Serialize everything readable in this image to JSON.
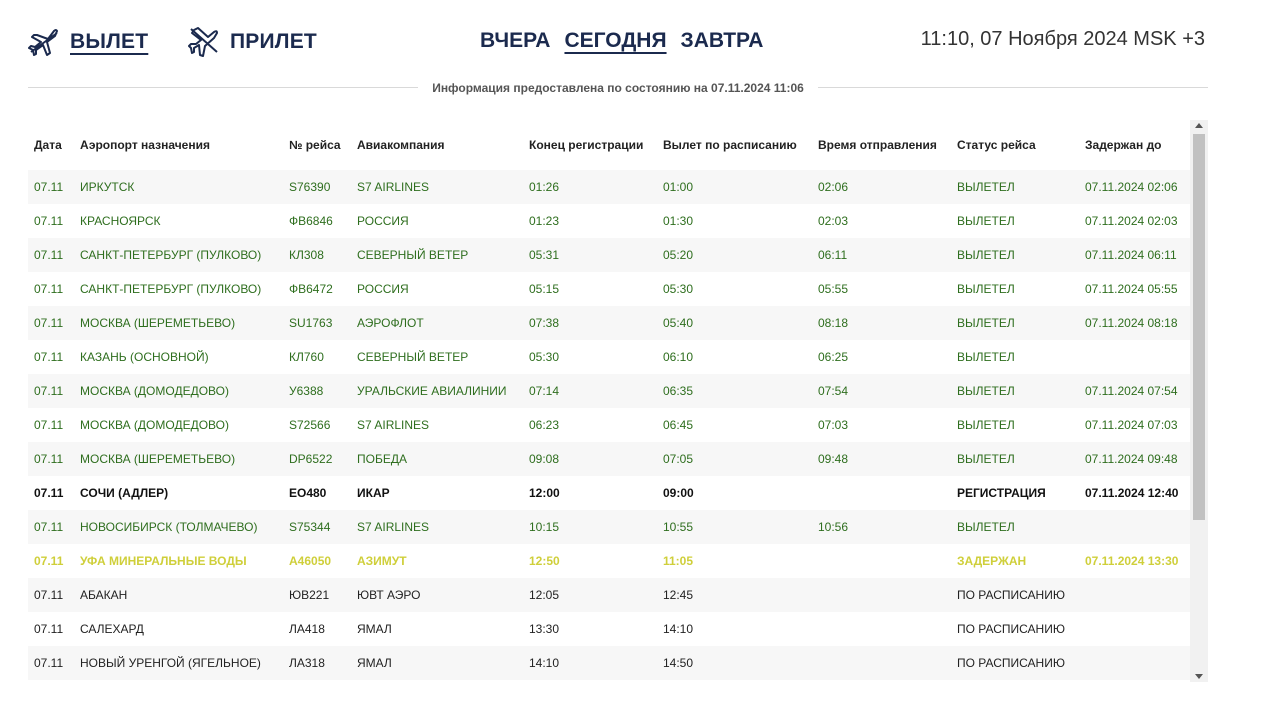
{
  "nav": {
    "departure_label": "ВЫЛЕТ",
    "arrival_label": "ПРИЛЕТ",
    "day_tabs": [
      "ВЧЕРА",
      "СЕГОДНЯ",
      "ЗАВТРА"
    ],
    "active_day": "СЕГОДНЯ",
    "active_direction": "ВЫЛЕТ",
    "clock": "11:10, 07 Ноября 2024 MSK +3",
    "accent_color": "#1b2a4e"
  },
  "info": {
    "text": "Информация предоставлена по состоянию на 07.11.2024 11:06"
  },
  "table": {
    "headers": [
      "Дата",
      "Аэропорт назначения",
      "№ рейса",
      "Авиакомпания",
      "Конец регистрации",
      "Вылет по расписанию",
      "Время отправления",
      "Статус рейса",
      "Задержан до"
    ],
    "status_colors": {
      "departed": "#2e6e1e",
      "checkin": "#111111",
      "delayed": "#cfcf3a",
      "scheduled": "#222222"
    },
    "rows": [
      {
        "status_class": "departed",
        "cells": [
          "07.11",
          "ИРКУТСК",
          "S76390",
          "S7 AIRLINES",
          "01:26",
          "01:00",
          "02:06",
          "ВЫЛЕТЕЛ",
          "07.11.2024 02:06"
        ]
      },
      {
        "status_class": "departed",
        "cells": [
          "07.11",
          "КРАСНОЯРСК",
          "ФВ6846",
          "РОССИЯ",
          "01:23",
          "01:30",
          "02:03",
          "ВЫЛЕТЕЛ",
          "07.11.2024 02:03"
        ]
      },
      {
        "status_class": "departed",
        "cells": [
          "07.11",
          "САНКТ-ПЕТЕРБУРГ (ПУЛКОВО)",
          "КЛ308",
          "СЕВЕРНЫЙ ВЕТЕР",
          "05:31",
          "05:20",
          "06:11",
          "ВЫЛЕТЕЛ",
          "07.11.2024 06:11"
        ]
      },
      {
        "status_class": "departed",
        "cells": [
          "07.11",
          "САНКТ-ПЕТЕРБУРГ (ПУЛКОВО)",
          "ФВ6472",
          "РОССИЯ",
          "05:15",
          "05:30",
          "05:55",
          "ВЫЛЕТЕЛ",
          "07.11.2024 05:55"
        ]
      },
      {
        "status_class": "departed",
        "cells": [
          "07.11",
          "МОСКВА (ШЕРЕМЕТЬЕВО)",
          "SU1763",
          "АЭРОФЛОТ",
          "07:38",
          "05:40",
          "08:18",
          "ВЫЛЕТЕЛ",
          "07.11.2024 08:18"
        ]
      },
      {
        "status_class": "departed",
        "cells": [
          "07.11",
          "КАЗАНЬ (ОСНОВНОЙ)",
          "КЛ760",
          "СЕВЕРНЫЙ ВЕТЕР",
          "05:30",
          "06:10",
          "06:25",
          "ВЫЛЕТЕЛ",
          ""
        ]
      },
      {
        "status_class": "departed",
        "cells": [
          "07.11",
          "МОСКВА (ДОМОДЕДОВО)",
          "У6388",
          "УРАЛЬСКИЕ АВИАЛИНИИ",
          "07:14",
          "06:35",
          "07:54",
          "ВЫЛЕТЕЛ",
          "07.11.2024 07:54"
        ]
      },
      {
        "status_class": "departed",
        "cells": [
          "07.11",
          "МОСКВА (ДОМОДЕДОВО)",
          "S72566",
          "S7 AIRLINES",
          "06:23",
          "06:45",
          "07:03",
          "ВЫЛЕТЕЛ",
          "07.11.2024 07:03"
        ]
      },
      {
        "status_class": "departed",
        "cells": [
          "07.11",
          "МОСКВА (ШЕРЕМЕТЬЕВО)",
          "DP6522",
          "ПОБЕДА",
          "09:08",
          "07:05",
          "09:48",
          "ВЫЛЕТЕЛ",
          "07.11.2024 09:48"
        ]
      },
      {
        "status_class": "checkin",
        "cells": [
          "07.11",
          "СОЧИ (АДЛЕР)",
          "ЕО480",
          "ИКАР",
          "12:00",
          "09:00",
          "",
          "РЕГИСТРАЦИЯ",
          "07.11.2024 12:40"
        ]
      },
      {
        "status_class": "departed",
        "cells": [
          "07.11",
          "НОВОСИБИРСК (ТОЛМАЧЕВО)",
          "S75344",
          "S7 AIRLINES",
          "10:15",
          "10:55",
          "10:56",
          "ВЫЛЕТЕЛ",
          ""
        ]
      },
      {
        "status_class": "delayed",
        "cells": [
          "07.11",
          "УФА МИНЕРАЛЬНЫЕ ВОДЫ",
          "А46050",
          "АЗИМУТ",
          "12:50",
          "11:05",
          "",
          "ЗАДЕРЖАН",
          "07.11.2024 13:30"
        ]
      },
      {
        "status_class": "scheduled",
        "cells": [
          "07.11",
          "АБАКАН",
          "ЮВ221",
          "ЮВТ АЭРО",
          "12:05",
          "12:45",
          "",
          "ПО РАСПИСАНИЮ",
          ""
        ]
      },
      {
        "status_class": "scheduled",
        "cells": [
          "07.11",
          "САЛЕХАРД",
          "ЛА418",
          "ЯМАЛ",
          "13:30",
          "14:10",
          "",
          "ПО РАСПИСАНИЮ",
          ""
        ]
      },
      {
        "status_class": "scheduled",
        "cells": [
          "07.11",
          "НОВЫЙ УРЕНГОЙ (ЯГЕЛЬНОЕ)",
          "ЛА318",
          "ЯМАЛ",
          "14:10",
          "14:50",
          "",
          "ПО РАСПИСАНИЮ",
          ""
        ]
      }
    ]
  }
}
